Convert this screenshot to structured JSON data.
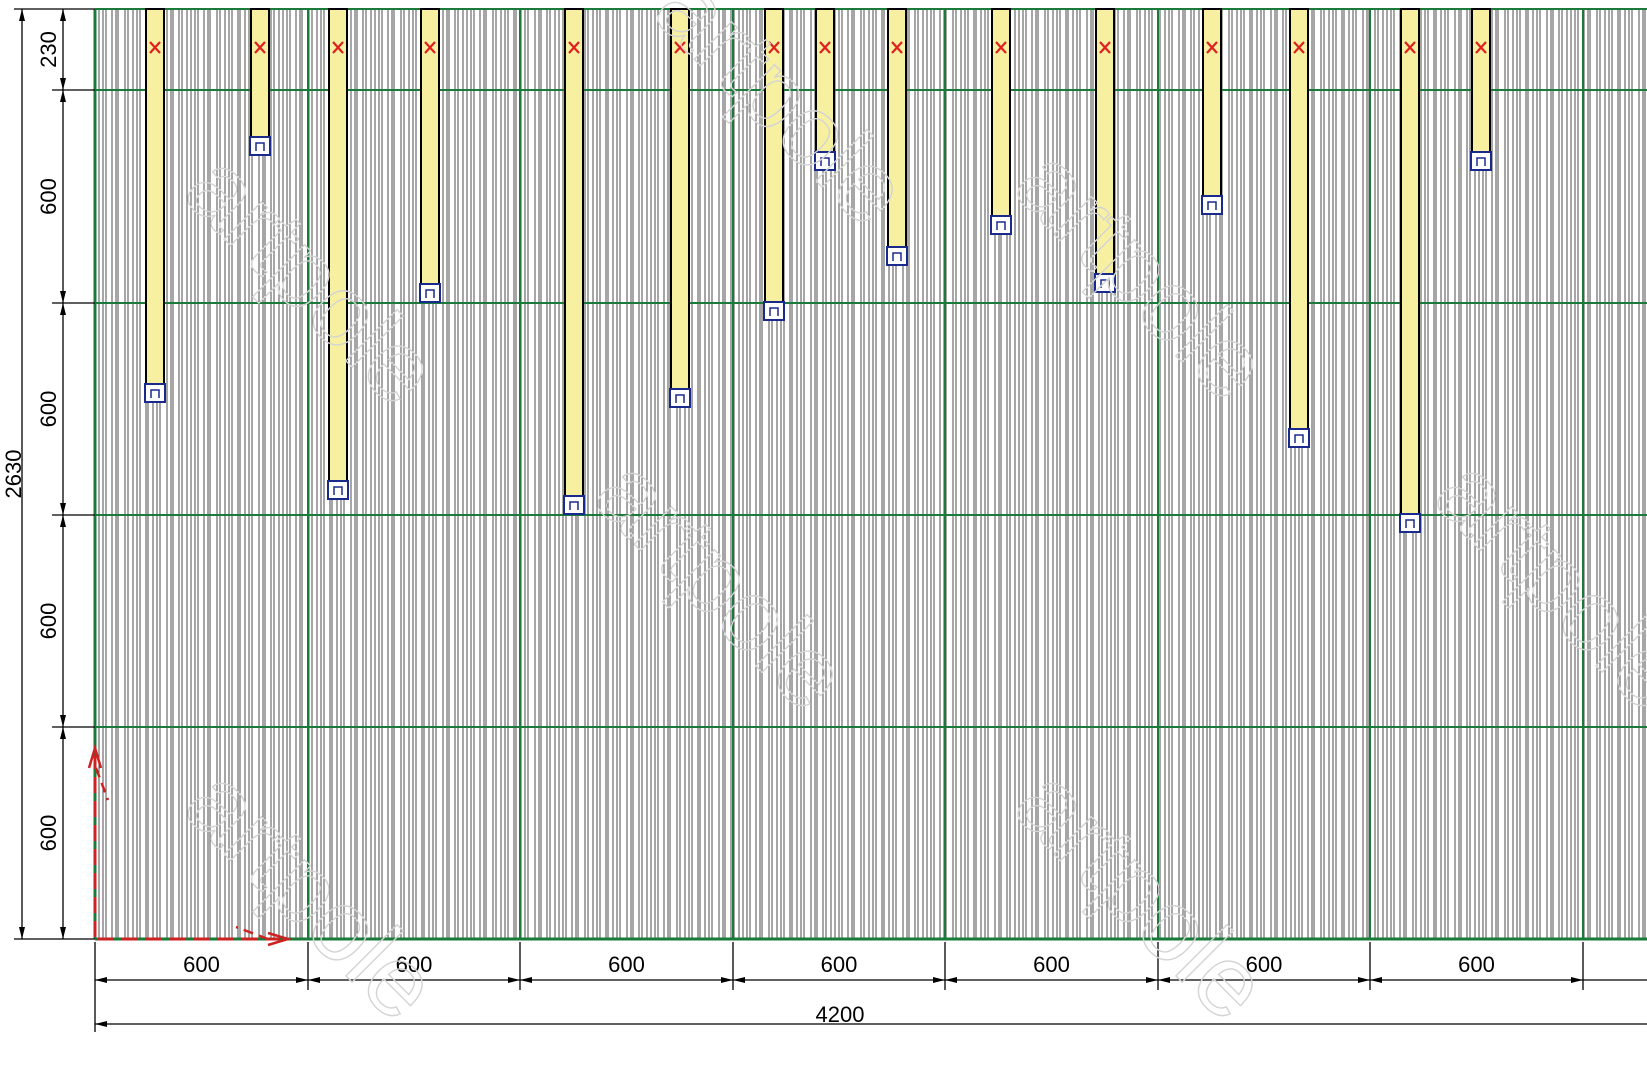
{
  "diagram": {
    "watermark": "artpole",
    "colors": {
      "grid": "#1a7a3a",
      "fiber": "#000000",
      "strip_fill": "#f6f0a0",
      "strip_border": "#000000",
      "top_marker": "#e02020",
      "bottom_marker": "#1a2a8c",
      "origin_arrows": "#cc2222"
    },
    "dimensions": {
      "total_width": "4200",
      "total_height": "2630",
      "column_widths": [
        "600",
        "600",
        "600",
        "600",
        "600",
        "600",
        "600"
      ],
      "row_heights": [
        "230",
        "600",
        "600",
        "600",
        "600"
      ]
    },
    "strip_icons": {
      "top": "x-marker-icon",
      "bottom": "square-marker-icon"
    }
  }
}
